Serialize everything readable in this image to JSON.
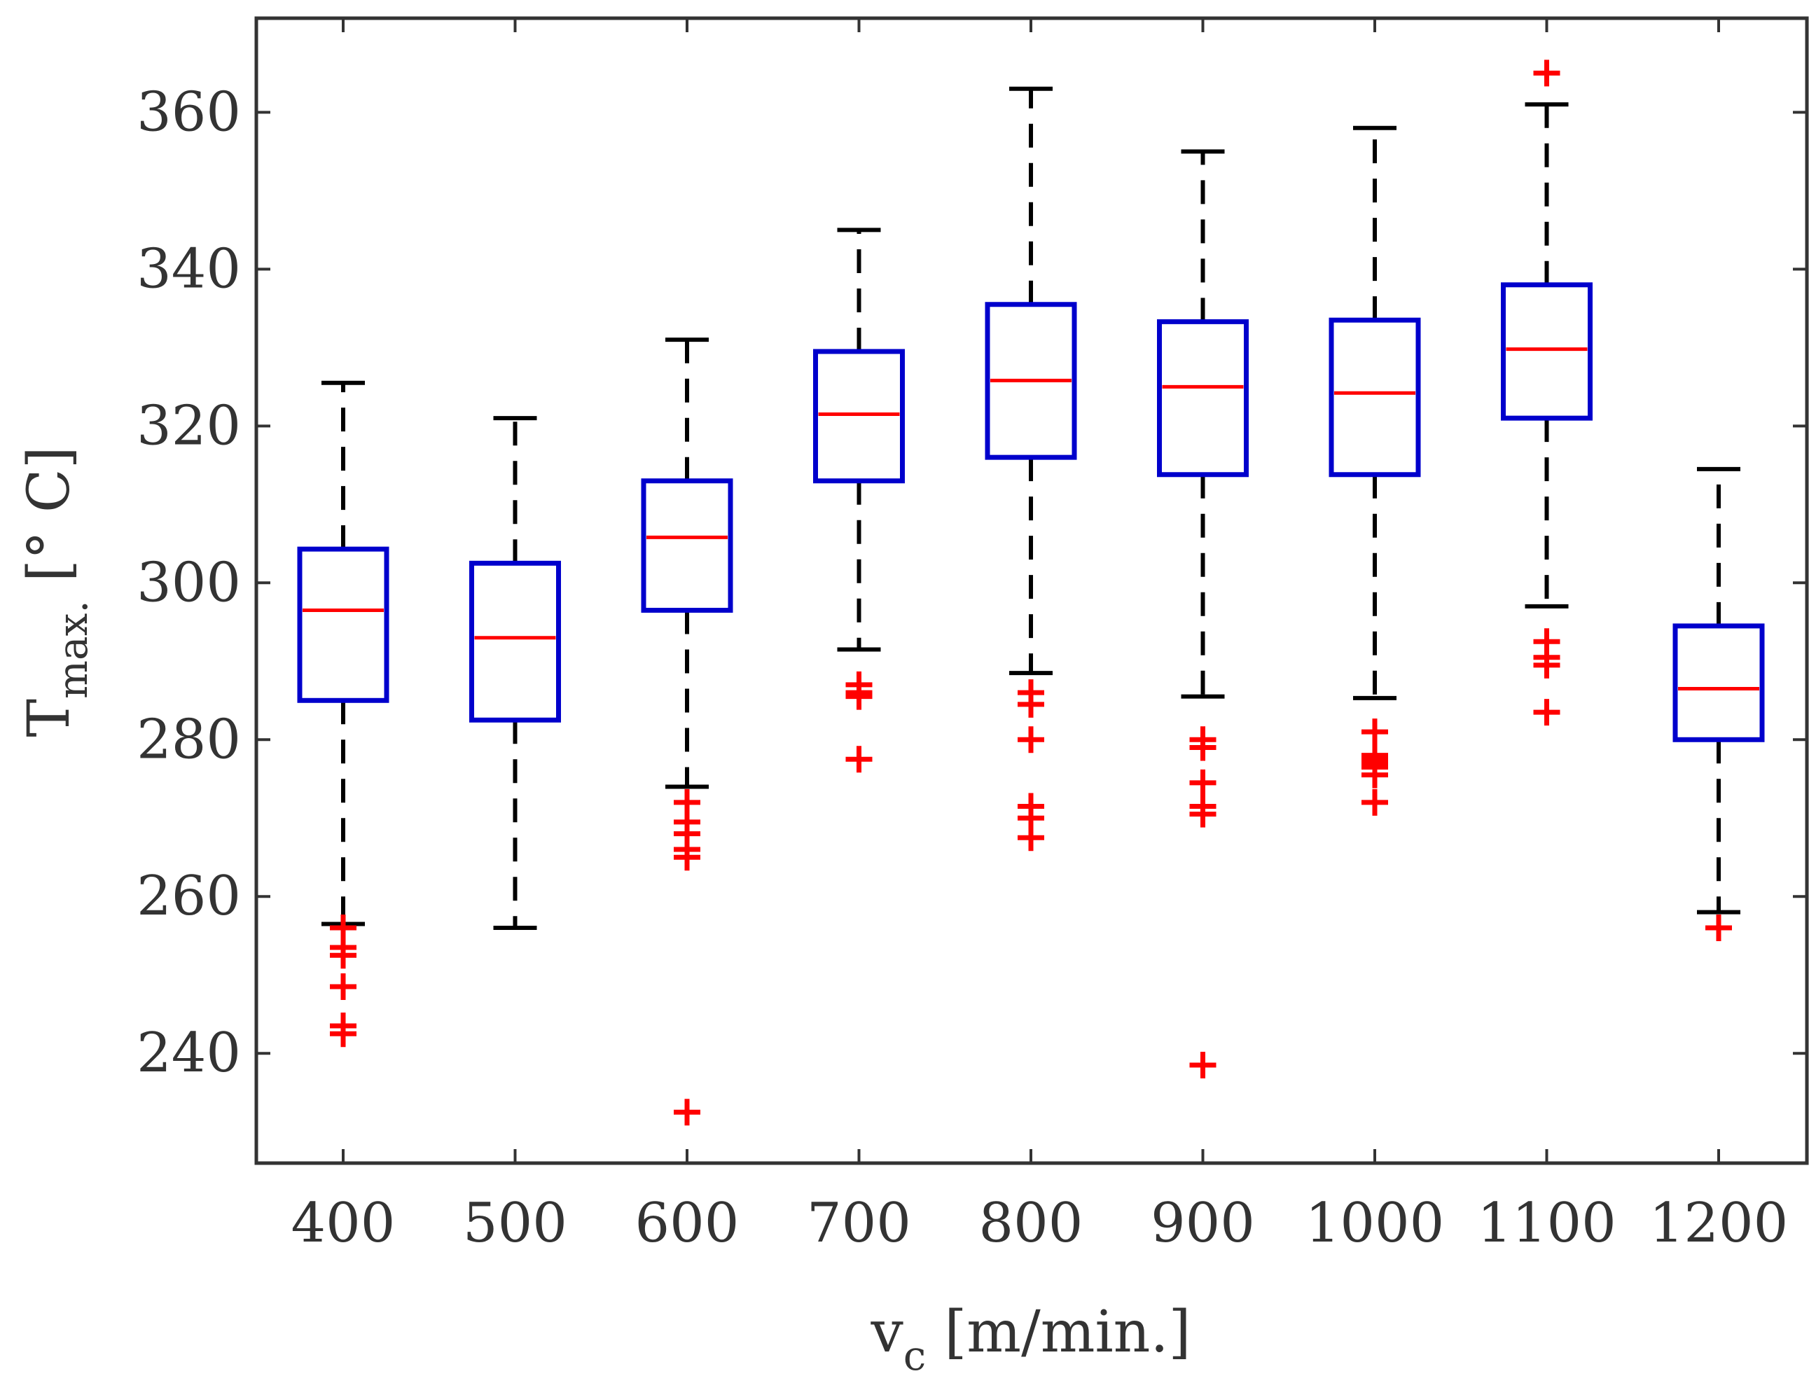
{
  "chart_data": {
    "type": "boxplot",
    "title": "",
    "xlabel": {
      "main": "v",
      "sub": "c",
      "rest": " [m/min.]"
    },
    "ylabel": {
      "main": "T",
      "sub": "max.",
      "rest": " [° C]"
    },
    "ylim": [
      226,
      372
    ],
    "yticks": [
      240,
      260,
      280,
      300,
      320,
      340,
      360
    ],
    "grid": false,
    "categories": [
      "400",
      "500",
      "600",
      "700",
      "800",
      "900",
      "1000",
      "1100",
      "1200"
    ],
    "boxes": [
      {
        "x": "400",
        "whisker_low": 256.5,
        "q1": 285.0,
        "median": 296.5,
        "q3": 304.3,
        "whisker_high": 325.5,
        "outliers": [
          256.0,
          253.5,
          252.5,
          248.5,
          243.5,
          242.5
        ]
      },
      {
        "x": "500",
        "whisker_low": 256.0,
        "q1": 282.5,
        "median": 293.0,
        "q3": 302.5,
        "whisker_high": 321.0,
        "outliers": []
      },
      {
        "x": "600",
        "whisker_low": 274.0,
        "q1": 296.5,
        "median": 305.8,
        "q3": 313.0,
        "whisker_high": 331.0,
        "outliers": [
          272.0,
          269.5,
          268.0,
          266.0,
          265.0,
          232.5
        ]
      },
      {
        "x": "700",
        "whisker_low": 291.5,
        "q1": 313.0,
        "median": 321.5,
        "q3": 329.5,
        "whisker_high": 345.0,
        "outliers": [
          287.0,
          286.0,
          285.5,
          277.5
        ]
      },
      {
        "x": "800",
        "whisker_low": 288.5,
        "q1": 316.0,
        "median": 325.8,
        "q3": 335.5,
        "whisker_high": 363.0,
        "outliers": [
          286.0,
          284.5,
          280.0,
          271.5,
          270.0,
          267.5
        ]
      },
      {
        "x": "900",
        "whisker_low": 285.5,
        "q1": 313.8,
        "median": 325.0,
        "q3": 333.3,
        "whisker_high": 355.0,
        "outliers": [
          280.0,
          279.0,
          274.5,
          271.5,
          270.5,
          238.5
        ]
      },
      {
        "x": "1000",
        "whisker_low": 285.3,
        "q1": 313.8,
        "median": 324.2,
        "q3": 333.5,
        "whisker_high": 358.0,
        "outliers": [
          281.0,
          278.0,
          277.5,
          277.0,
          276.5,
          275.5,
          272.0
        ]
      },
      {
        "x": "1100",
        "whisker_low": 297.0,
        "q1": 321.0,
        "median": 329.8,
        "q3": 338.0,
        "whisker_high": 361.0,
        "outliers": [
          365.0,
          292.5,
          290.5,
          289.5,
          283.5
        ]
      },
      {
        "x": "1200",
        "whisker_low": 258.0,
        "q1": 280.0,
        "median": 286.5,
        "q3": 294.5,
        "whisker_high": 314.5,
        "outliers": [
          256.0
        ]
      }
    ],
    "colors": {
      "box": "#0000cc",
      "median": "#ff0000",
      "whisker": "#000000",
      "outlier": "#ff0000",
      "axis": "#333333",
      "text": "#333333"
    }
  }
}
